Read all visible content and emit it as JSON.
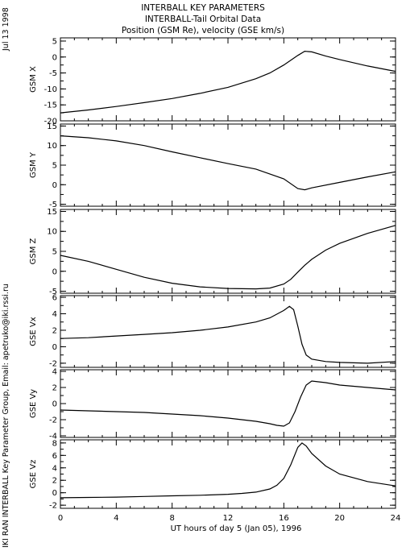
{
  "header": {
    "title": "INTERBALL KEY PARAMETERS",
    "subtitle": "INTERBALL-Tail Orbital Data",
    "subtitle2": "Position (GSM Re), velocity (GSE km/s)"
  },
  "side": {
    "date": "Jul 13 1998",
    "credit": "IKI RAN INTERBALL Key Parameter Group, Email: apetruko@iki.rssi.ru"
  },
  "chart_data": {
    "type": "line",
    "xlabel": "UT hours of day   5 (Jan 05), 1996",
    "xlim": [
      0,
      24
    ],
    "xticks": [
      0,
      4,
      8,
      12,
      16,
      20,
      24
    ],
    "panels": [
      {
        "ylabel": "GSM X",
        "ylim": [
          -20,
          6
        ],
        "yticks": [
          5,
          0,
          -5,
          -10,
          -15,
          -20
        ],
        "x": [
          0,
          2,
          4,
          6,
          8,
          10,
          12,
          14,
          15,
          16,
          17,
          17.5,
          18,
          19,
          20,
          22,
          24
        ],
        "y": [
          -17.5,
          -16.6,
          -15.5,
          -14.3,
          -13,
          -11.4,
          -9.5,
          -6.8,
          -5,
          -2.5,
          0.5,
          1.8,
          1.6,
          0.3,
          -0.8,
          -2.8,
          -4.5
        ]
      },
      {
        "ylabel": "GSM Y",
        "ylim": [
          -5.5,
          15.5
        ],
        "yticks": [
          15,
          10,
          5,
          0,
          -5
        ],
        "x": [
          0,
          2,
          4,
          6,
          8,
          10,
          12,
          14,
          16,
          17,
          17.5,
          18,
          20,
          22,
          24
        ],
        "y": [
          12.5,
          12,
          11.2,
          10,
          8.4,
          6.9,
          5.4,
          4,
          1.5,
          -1,
          -1.3,
          -0.8,
          0.6,
          2,
          3.3
        ]
      },
      {
        "ylabel": "GSM Z",
        "ylim": [
          -5.5,
          15.5
        ],
        "yticks": [
          15,
          10,
          5,
          0,
          -5
        ],
        "x": [
          0,
          2,
          4,
          6,
          8,
          10,
          12,
          14,
          15,
          16,
          16.5,
          17,
          17.5,
          18,
          19,
          20,
          22,
          24
        ],
        "y": [
          4,
          2.5,
          0.5,
          -1.5,
          -3,
          -3.9,
          -4.3,
          -4.4,
          -4.2,
          -3.2,
          -2,
          -0.2,
          1.5,
          3,
          5.3,
          7,
          9.5,
          11.5
        ]
      },
      {
        "ylabel": "GSE Vx",
        "ylim": [
          -2.5,
          6.2
        ],
        "yticks": [
          6,
          4,
          2,
          0,
          -2
        ],
        "x": [
          0,
          2,
          4,
          6,
          8,
          10,
          12,
          14,
          15,
          16,
          16.4,
          16.7,
          17,
          17.3,
          17.6,
          18,
          19,
          20,
          22,
          24
        ],
        "y": [
          1,
          1.1,
          1.3,
          1.5,
          1.7,
          2,
          2.4,
          3,
          3.5,
          4.4,
          4.9,
          4.5,
          2.5,
          0.3,
          -1,
          -1.5,
          -1.8,
          -1.9,
          -2,
          -1.8
        ]
      },
      {
        "ylabel": "GSE Vy",
        "ylim": [
          -4.2,
          4.2
        ],
        "yticks": [
          4,
          2,
          0,
          -2,
          -4
        ],
        "x": [
          0,
          2,
          4,
          6,
          8,
          10,
          12,
          14,
          15,
          15.5,
          16,
          16.4,
          16.8,
          17.2,
          17.6,
          18,
          19,
          20,
          22,
          24
        ],
        "y": [
          -0.8,
          -0.9,
          -1,
          -1.1,
          -1.3,
          -1.5,
          -1.8,
          -2.2,
          -2.5,
          -2.7,
          -2.8,
          -2.4,
          -1,
          0.8,
          2.3,
          2.8,
          2.6,
          2.3,
          2,
          1.7
        ]
      },
      {
        "ylabel": "GSE Vz",
        "ylim": [
          -2.5,
          8.5
        ],
        "yticks": [
          8,
          6,
          4,
          2,
          0,
          -2
        ],
        "x": [
          0,
          2,
          4,
          6,
          8,
          10,
          12,
          13,
          14,
          15,
          15.5,
          16,
          16.5,
          17,
          17.3,
          17.6,
          18,
          19,
          20,
          22,
          24
        ],
        "y": [
          -0.8,
          -0.75,
          -0.7,
          -0.6,
          -0.5,
          -0.4,
          -0.25,
          -0.1,
          0.1,
          0.6,
          1.2,
          2.3,
          4.5,
          7.3,
          8,
          7.5,
          6.3,
          4.3,
          3,
          1.8,
          1.1
        ]
      }
    ]
  }
}
